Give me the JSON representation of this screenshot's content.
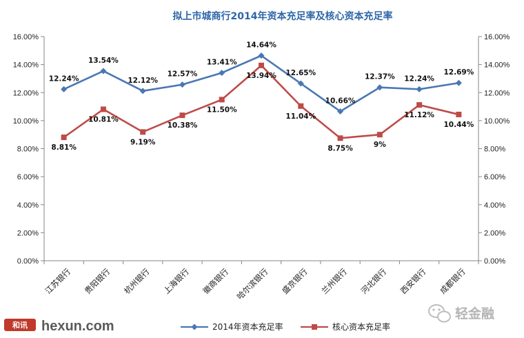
{
  "chart_data": {
    "type": "line",
    "title": "拟上市城商行2014年资本充足率及核心资本充足率",
    "categories": [
      "江苏银行",
      "贵阳银行",
      "杭州银行",
      "上海银行",
      "徽商银行",
      "哈尔滨银行",
      "盛京银行",
      "兰州银行",
      "河北银行",
      "西安银行",
      "成都银行"
    ],
    "series": [
      {
        "name": "2014年资本充足率",
        "values": [
          12.24,
          13.54,
          12.12,
          12.57,
          13.41,
          14.64,
          12.65,
          10.66,
          12.37,
          12.24,
          12.69
        ],
        "labels": [
          "12.24%",
          "13.54%",
          "12.12%",
          "12.57%",
          "13.41%",
          "14.64%",
          "12.65%",
          "10.66%",
          "12.37%",
          "12.24%",
          "12.69%"
        ],
        "color": "#4a77b4",
        "marker": "diamond"
      },
      {
        "name": "核心资本充足率",
        "values": [
          8.81,
          10.81,
          9.19,
          10.38,
          11.5,
          13.94,
          11.04,
          8.75,
          9.0,
          11.12,
          10.44
        ],
        "labels": [
          "8.81%",
          "10.81%",
          "9.19%",
          "10.38%",
          "11.50%",
          "13.94%",
          "11.04%",
          "8.75%",
          "9%",
          "11.12%",
          "10.44%"
        ],
        "color": "#be4b48",
        "marker": "square"
      }
    ],
    "y_ticks": [
      "0.00%",
      "2.00%",
      "4.00%",
      "6.00%",
      "8.00%",
      "10.00%",
      "12.00%",
      "14.00%",
      "16.00%"
    ],
    "ylim": [
      0,
      16
    ],
    "y_step": 2,
    "grid": false,
    "legend_position": "bottom",
    "title_color": "#2e66a8"
  },
  "watermarks": {
    "left_logo": "和讯",
    "left_text": "hexun.com",
    "right_text": "轻金融"
  }
}
